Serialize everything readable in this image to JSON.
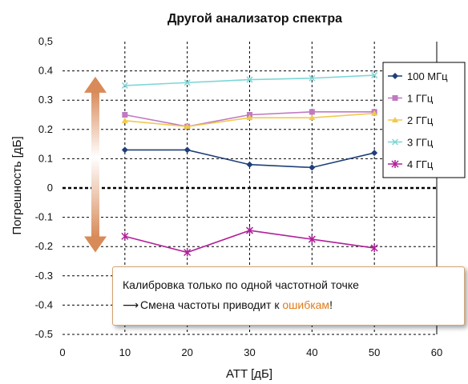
{
  "chart_data": {
    "type": "line",
    "title": "Другой анализатор спектра",
    "xlabel": "ATT [дБ]",
    "ylabel": "Погрешность [дБ]",
    "xlim": [
      0,
      60
    ],
    "ylim": [
      -0.5,
      0.5
    ],
    "x_ticks": [
      "0",
      "10",
      "20",
      "30",
      "40",
      "50",
      "60"
    ],
    "y_ticks": [
      "0,5",
      "0.4",
      "0.3",
      "0.2",
      "0.1",
      "0",
      "-0.1",
      "-0.2",
      "-0.3",
      "-0.4",
      "-0.5"
    ],
    "grid": true,
    "legend_position": "top-right",
    "x": [
      10,
      20,
      30,
      40,
      50
    ],
    "series": [
      {
        "name": "100 МГц",
        "color": "#1f3f7a",
        "marker": "diamond",
        "values": [
          0.13,
          0.13,
          0.08,
          0.07,
          0.12
        ]
      },
      {
        "name": "1 ГГц",
        "color": "#c07ac0",
        "marker": "square",
        "values": [
          0.25,
          0.21,
          0.25,
          0.26,
          0.26
        ]
      },
      {
        "name": "2 ГГц",
        "color": "#f2c94c",
        "marker": "triangle",
        "values": [
          0.23,
          0.21,
          0.24,
          0.24,
          0.255
        ]
      },
      {
        "name": "3 ГГц",
        "color": "#7fd6d6",
        "marker": "x",
        "values": [
          0.35,
          0.36,
          0.37,
          0.375,
          0.385
        ]
      },
      {
        "name": "4 ГГц",
        "color": "#b0209a",
        "marker": "star",
        "values": [
          -0.165,
          -0.22,
          -0.145,
          -0.175,
          -0.205
        ]
      }
    ],
    "annotation_arrow": {
      "from": 0.38,
      "to": -0.22,
      "color": "#d88a58"
    }
  },
  "callout": {
    "line1": "Калибровка только по одной частотной точке",
    "arrow": "⟶",
    "line2_pre": "Смена частоты приводит к ",
    "line2_highlight": "ошибкам",
    "line2_post": "!"
  }
}
